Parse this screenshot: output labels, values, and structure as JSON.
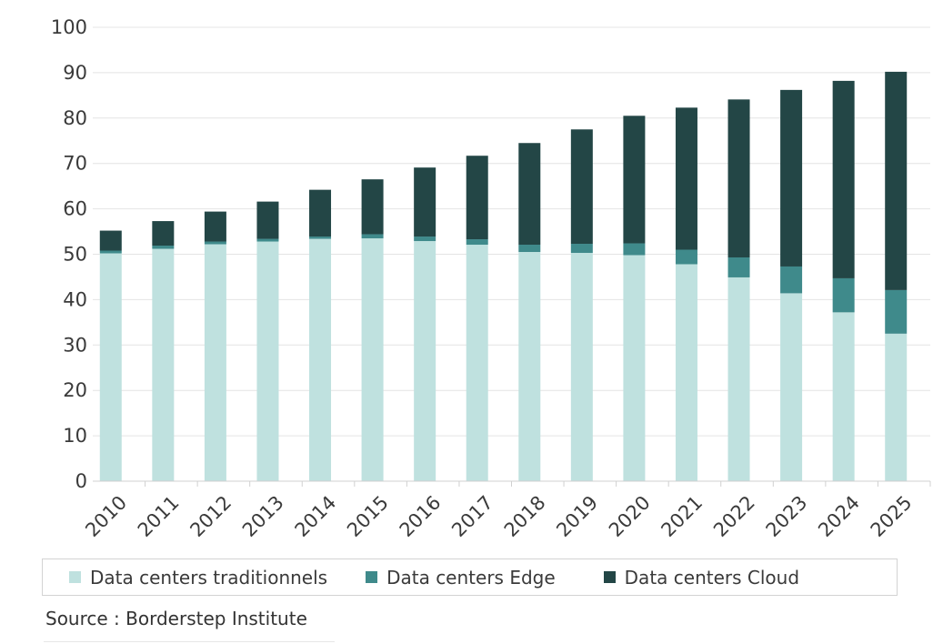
{
  "chart_data": {
    "type": "bar",
    "stacked": true,
    "categories": [
      "2010",
      "2011",
      "2012",
      "2013",
      "2014",
      "2015",
      "2016",
      "2017",
      "2018",
      "2019",
      "2020",
      "2021",
      "2022",
      "2023",
      "2024",
      "2025"
    ],
    "series": [
      {
        "name": "Data centers traditionnels",
        "color": "#bfe1df",
        "values": [
          50.2,
          51.2,
          52.2,
          52.8,
          53.4,
          53.5,
          52.9,
          52.1,
          50.5,
          50.3,
          49.8,
          47.8,
          44.9,
          41.4,
          37.2,
          32.5
        ]
      },
      {
        "name": "Data centers Edge",
        "color": "#3f8a8b",
        "values": [
          0.6,
          0.7,
          0.6,
          0.6,
          0.5,
          0.9,
          1.0,
          1.2,
          1.6,
          2.0,
          2.6,
          3.2,
          4.4,
          5.9,
          7.5,
          9.6
        ]
      },
      {
        "name": "Data centers Cloud",
        "color": "#234646",
        "values": [
          4.4,
          5.4,
          6.6,
          8.2,
          10.3,
          12.1,
          15.2,
          18.4,
          22.4,
          25.2,
          28.1,
          31.3,
          34.8,
          38.9,
          43.5,
          48.1
        ]
      }
    ],
    "ylim": [
      0,
      100
    ],
    "yticks": [
      0,
      10,
      20,
      30,
      40,
      50,
      60,
      70,
      80,
      90,
      100
    ],
    "grid": true,
    "legend_position": "bottom"
  },
  "source": "Source : Borderstep Institute"
}
